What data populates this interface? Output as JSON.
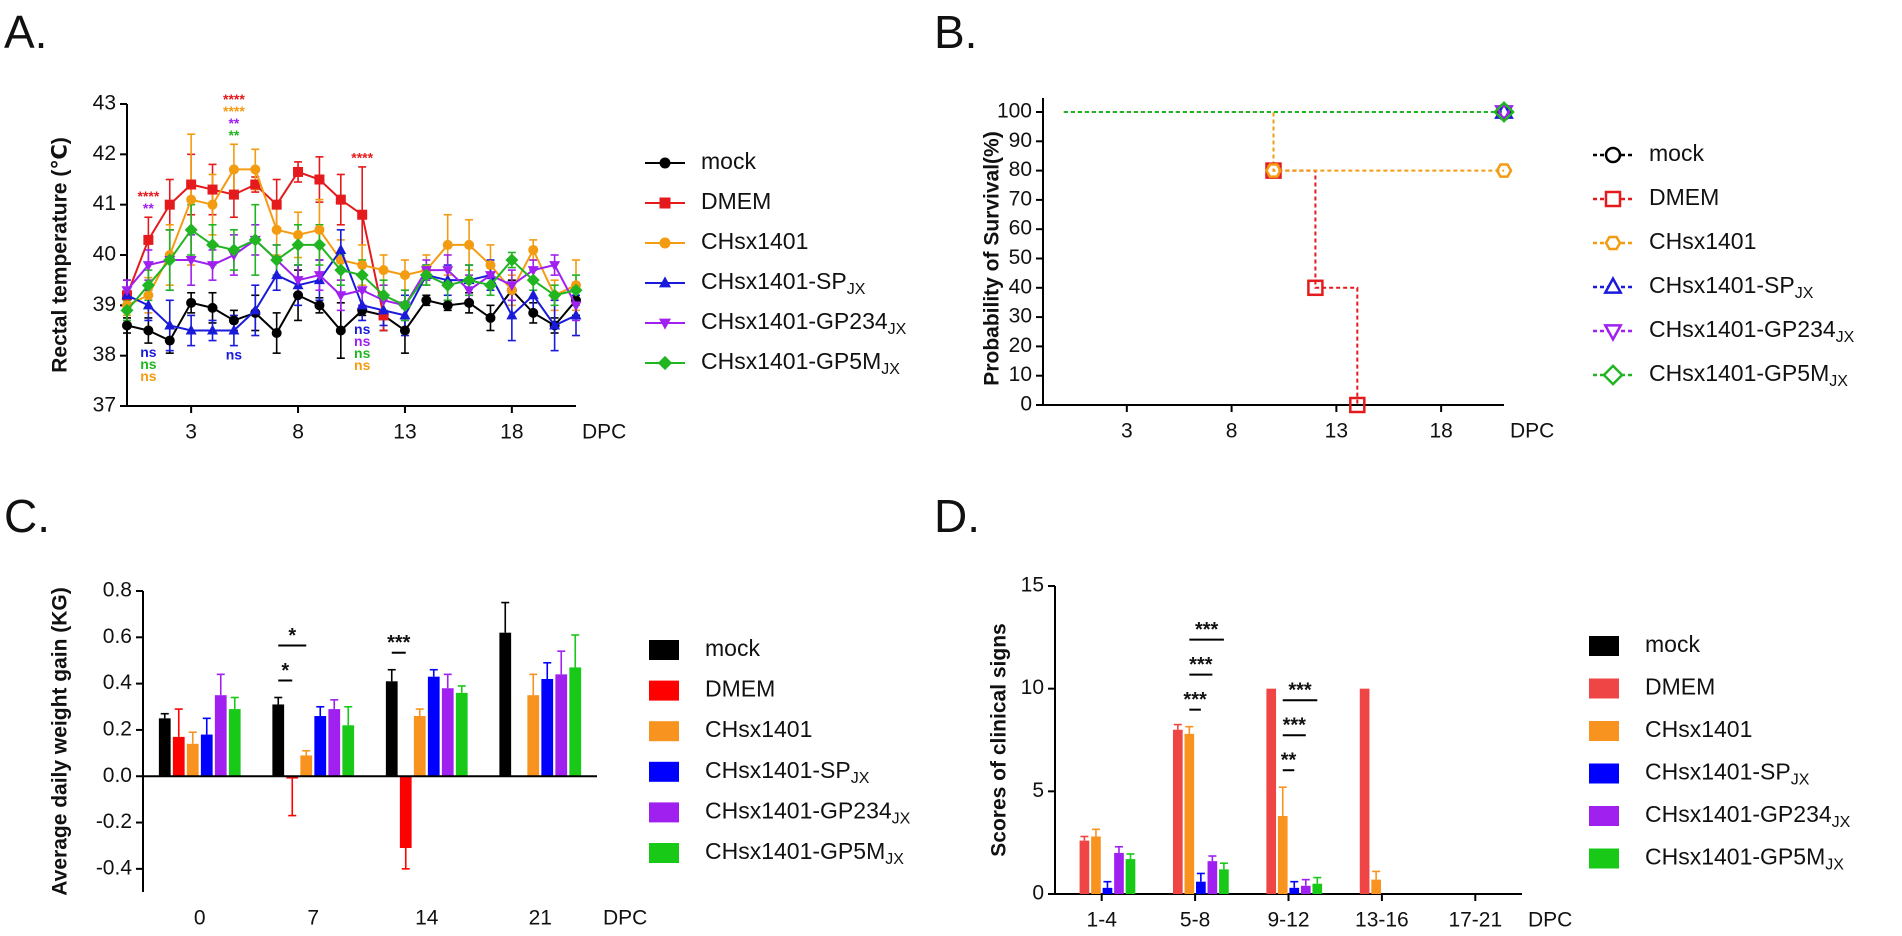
{
  "chart_data": [
    {
      "type": "line",
      "title": "A.",
      "ylabel": "Rectal temperature (℃)",
      "xlabel": "DPC",
      "x": [
        0,
        1,
        2,
        3,
        4,
        5,
        6,
        7,
        8,
        9,
        10,
        11,
        12,
        13,
        14,
        15,
        16,
        17,
        18,
        19,
        20,
        21
      ],
      "xlim": [
        0,
        21
      ],
      "xticks": [
        3,
        8,
        13,
        18
      ],
      "ylim": [
        37,
        43
      ],
      "yticks": [
        37,
        38,
        39,
        40,
        41,
        42,
        43
      ],
      "series": [
        {
          "name": "mock",
          "color": "#000000",
          "marker": "circle",
          "values": [
            38.6,
            38.5,
            38.3,
            39.05,
            38.95,
            38.7,
            38.85,
            38.45,
            39.2,
            39.0,
            38.5,
            38.9,
            38.8,
            38.5,
            39.1,
            39.0,
            39.05,
            38.75,
            39.3,
            38.85,
            38.6,
            39.1
          ],
          "errors": [
            0.15,
            0.25,
            0.25,
            0.2,
            0.3,
            0.2,
            0.35,
            0.4,
            0.5,
            0.15,
            0.55,
            0.1,
            0.3,
            0.45,
            0.1,
            0.1,
            0.2,
            0.25,
            0.2,
            0.2,
            0.15,
            0.3
          ]
        },
        {
          "name": "DMEM",
          "color": "#e41a1c",
          "marker": "square",
          "values": [
            39.2,
            40.3,
            41.0,
            41.4,
            41.3,
            41.2,
            41.4,
            41.0,
            41.65,
            41.5,
            41.1,
            40.8,
            38.8,
            null,
            null,
            null,
            null,
            null,
            null,
            null,
            null,
            null
          ],
          "errors": [
            0.3,
            0.45,
            0.5,
            0.6,
            0.5,
            0.45,
            0.15,
            0.5,
            0.2,
            0.45,
            0.5,
            0.95,
            0.3,
            null,
            null,
            null,
            null,
            null,
            null,
            null,
            null,
            null
          ]
        },
        {
          "name": "CHsx1401",
          "color": "#f39c12",
          "marker": "circle",
          "values": [
            39.0,
            39.2,
            40.0,
            41.1,
            41.0,
            41.7,
            41.7,
            40.5,
            40.4,
            40.5,
            39.9,
            39.8,
            39.7,
            39.6,
            39.7,
            40.2,
            40.2,
            39.8,
            39.3,
            40.1,
            39.2,
            39.4
          ],
          "errors": [
            0.2,
            0.35,
            0.6,
            1.3,
            0.6,
            0.5,
            0.4,
            0.5,
            0.45,
            0.6,
            0.4,
            0.4,
            0.3,
            0.3,
            0.3,
            0.6,
            0.5,
            0.4,
            0.3,
            0.2,
            0.3,
            0.5
          ]
        },
        {
          "name": "CHsx1401-SP",
          "subscript": "JX",
          "color": "#1a1adb",
          "marker": "triangle",
          "values": [
            39.2,
            39.0,
            38.6,
            38.5,
            38.5,
            38.5,
            38.9,
            39.6,
            39.4,
            39.5,
            40.1,
            39.0,
            38.9,
            38.8,
            39.6,
            39.5,
            39.5,
            39.6,
            38.8,
            39.2,
            38.6,
            38.8
          ],
          "errors": [
            0.3,
            0.3,
            0.5,
            0.3,
            0.2,
            0.3,
            0.5,
            0.3,
            0.4,
            0.4,
            0.4,
            0.3,
            0.3,
            0.4,
            0.2,
            0.3,
            0.3,
            0.3,
            0.5,
            0.3,
            0.5,
            0.4
          ]
        },
        {
          "name": "CHsx1401-GP234",
          "subscript": "JX",
          "color": "#a020f0",
          "marker": "triangle-down",
          "values": [
            39.3,
            39.8,
            39.9,
            39.9,
            39.8,
            40.0,
            40.3,
            39.9,
            39.5,
            39.6,
            39.2,
            39.3,
            39.1,
            39.0,
            39.7,
            39.7,
            39.3,
            39.6,
            39.4,
            39.7,
            39.8,
            39.0
          ],
          "errors": [
            0.2,
            0.3,
            0.6,
            0.5,
            0.3,
            0.4,
            0.3,
            0.3,
            0.3,
            0.3,
            0.3,
            0.3,
            0.3,
            0.3,
            0.2,
            0.3,
            0.3,
            0.2,
            0.3,
            0.2,
            0.2,
            0.3
          ]
        },
        {
          "name": "CHsx1401-GP5M",
          "subscript": "JX",
          "color": "#22b522",
          "marker": "diamond",
          "values": [
            38.9,
            39.4,
            39.9,
            40.5,
            40.2,
            40.1,
            40.3,
            39.9,
            40.2,
            40.2,
            39.7,
            39.6,
            39.2,
            39.0,
            39.6,
            39.4,
            39.5,
            39.4,
            39.9,
            39.5,
            39.2,
            39.3
          ],
          "errors": [
            0.2,
            0.3,
            0.6,
            0.5,
            0.4,
            0.4,
            0.7,
            0.3,
            0.4,
            0.4,
            0.3,
            0.3,
            0.3,
            0.3,
            0.2,
            0.3,
            0.3,
            0.2,
            0.15,
            0.2,
            0.2,
            0.3
          ]
        }
      ],
      "annotations": [
        {
          "x": 1,
          "position": "above",
          "labels": [
            {
              "text": "****",
              "color": "#e41a1c"
            },
            {
              "text": "**",
              "color": "#a020f0"
            }
          ]
        },
        {
          "x": 5,
          "position": "above",
          "labels": [
            {
              "text": "****",
              "color": "#e41a1c"
            },
            {
              "text": "****",
              "color": "#f39c12"
            },
            {
              "text": "**",
              "color": "#a020f0"
            },
            {
              "text": "**",
              "color": "#22b522"
            }
          ]
        },
        {
          "x": 11,
          "position": "above",
          "labels": [
            {
              "text": "****",
              "color": "#e41a1c"
            }
          ]
        },
        {
          "x": 1,
          "position": "below",
          "labels": [
            {
              "text": "ns",
              "color": "#1a1adb"
            },
            {
              "text": "ns",
              "color": "#22b522"
            },
            {
              "text": "ns",
              "color": "#f39c12"
            }
          ]
        },
        {
          "x": 5,
          "position": "below",
          "labels": [
            {
              "text": "ns",
              "color": "#1a1adb"
            }
          ]
        },
        {
          "x": 11,
          "position": "below",
          "labels": [
            {
              "text": "ns",
              "color": "#1a1adb"
            },
            {
              "text": "ns",
              "color": "#a020f0"
            },
            {
              "text": "ns",
              "color": "#22b522"
            },
            {
              "text": "ns",
              "color": "#f39c12"
            }
          ]
        }
      ]
    },
    {
      "type": "step",
      "title": "B.",
      "ylabel": "Probability of Survival(%)",
      "xlabel": "DPC",
      "line_style": "dashed",
      "xlim": [
        -1,
        21
      ],
      "xticks": [
        3,
        8,
        13,
        18
      ],
      "ylim": [
        0,
        100
      ],
      "yticks": [
        0,
        10,
        20,
        30,
        40,
        50,
        60,
        70,
        80,
        90,
        100
      ],
      "series": [
        {
          "name": "mock",
          "color": "#000000",
          "marker": "circle",
          "x": [
            0,
            21
          ],
          "values": [
            100,
            100
          ]
        },
        {
          "name": "DMEM",
          "color": "#e41a1c",
          "marker": "square",
          "x": [
            0,
            10,
            12,
            14
          ],
          "values": [
            100,
            80,
            40,
            0
          ]
        },
        {
          "name": "CHsx1401",
          "color": "#f39c12",
          "marker": "hexagon",
          "x": [
            0,
            10,
            21
          ],
          "values": [
            100,
            80,
            80
          ]
        },
        {
          "name": "CHsx1401-SP",
          "subscript": "JX",
          "color": "#1a1adb",
          "marker": "triangle",
          "x": [
            0,
            21
          ],
          "values": [
            100,
            100
          ]
        },
        {
          "name": "CHsx1401-GP234",
          "subscript": "JX",
          "color": "#a020f0",
          "marker": "triangle-down",
          "x": [
            0,
            21
          ],
          "values": [
            100,
            100
          ]
        },
        {
          "name": "CHsx1401-GP5M",
          "subscript": "JX",
          "color": "#22b522",
          "marker": "diamond",
          "x": [
            0,
            21
          ],
          "values": [
            100,
            100
          ]
        }
      ]
    },
    {
      "type": "bar",
      "title": "C.",
      "ylabel": "Average daily weight gain (KG)",
      "xlabel": "DPC",
      "categories": [
        "0",
        "7",
        "14",
        "21"
      ],
      "ylim": [
        -0.5,
        0.8
      ],
      "yticks": [
        -0.4,
        -0.2,
        {
          "value": 0,
          "label": "0.0"
        },
        0.2,
        0.4,
        0.6,
        0.8
      ],
      "series": [
        {
          "name": "mock",
          "color": "#000000",
          "values": [
            0.25,
            0.31,
            0.41,
            0.62
          ],
          "errors": [
            0.02,
            0.03,
            0.05,
            0.13
          ]
        },
        {
          "name": "DMEM",
          "color": "#ff0000",
          "values": [
            0.17,
            -0.01,
            -0.31,
            null
          ],
          "errors": [
            0.12,
            0.16,
            0.09,
            null
          ]
        },
        {
          "name": "CHsx1401",
          "color": "#f7931e",
          "values": [
            0.14,
            0.09,
            0.26,
            0.35
          ],
          "errors": [
            0.05,
            0.02,
            0.03,
            0.09
          ]
        },
        {
          "name": "CHsx1401-SP",
          "subscript": "JX",
          "color": "#0000ff",
          "values": [
            0.18,
            0.26,
            0.43,
            0.42
          ],
          "errors": [
            0.07,
            0.04,
            0.03,
            0.07
          ]
        },
        {
          "name": "CHsx1401-GP234",
          "subscript": "JX",
          "color": "#a020f0",
          "values": [
            0.35,
            0.29,
            0.38,
            0.44
          ],
          "errors": [
            0.09,
            0.04,
            0.06,
            0.1
          ]
        },
        {
          "name": "CHsx1401-GP5M",
          "subscript": "JX",
          "color": "#18c918",
          "values": [
            0.29,
            0.22,
            0.36,
            0.47
          ],
          "errors": [
            0.05,
            0.08,
            0.03,
            0.14
          ]
        }
      ],
      "annotations": [
        {
          "category": 1,
          "from": 0,
          "to": 1,
          "text": "*"
        },
        {
          "category": 1,
          "from": 0,
          "to": 2,
          "text": "*"
        },
        {
          "category": 2,
          "from": 0,
          "to": 1,
          "text": "***"
        }
      ]
    },
    {
      "type": "bar",
      "title": "D.",
      "ylabel": "Scores of clinical signs",
      "xlabel": "DPC",
      "axis_at_bottom": true,
      "categories": [
        "1-4",
        "5-8",
        "9-12",
        "13-16",
        "17-21"
      ],
      "ylim": [
        0,
        15
      ],
      "yticks": [
        0,
        5,
        10,
        15
      ],
      "series": [
        {
          "name": "mock",
          "color": "#000000",
          "values": [
            0,
            0,
            0,
            0,
            0
          ],
          "errors": [
            0,
            0,
            0,
            0,
            0
          ]
        },
        {
          "name": "DMEM",
          "color": "#f04545",
          "values": [
            2.6,
            8.0,
            10,
            10,
            0
          ],
          "errors": [
            0.2,
            0.25,
            0,
            0,
            0
          ]
        },
        {
          "name": "CHsx1401",
          "color": "#f7931e",
          "values": [
            2.8,
            7.8,
            3.8,
            0.7,
            0
          ],
          "errors": [
            0.35,
            0.35,
            1.4,
            0.4,
            0
          ]
        },
        {
          "name": "CHsx1401-SP",
          "subscript": "JX",
          "color": "#0000ff",
          "values": [
            0.3,
            0.6,
            0.3,
            0,
            0
          ],
          "errors": [
            0.3,
            0.4,
            0.3,
            0,
            0
          ]
        },
        {
          "name": "CHsx1401-GP234",
          "subscript": "JX",
          "color": "#a020f0",
          "values": [
            2.0,
            1.6,
            0.4,
            0,
            0
          ],
          "errors": [
            0.3,
            0.25,
            0.3,
            0,
            0
          ]
        },
        {
          "name": "CHsx1401-GP5M",
          "subscript": "JX",
          "color": "#18c918",
          "values": [
            1.7,
            1.2,
            0.5,
            0,
            0
          ],
          "errors": [
            0.25,
            0.3,
            0.3,
            0,
            0
          ]
        }
      ],
      "annotations": [
        {
          "category": 1,
          "from": 2,
          "to": 3,
          "text": "***"
        },
        {
          "category": 1,
          "from": 2,
          "to": 4,
          "text": "***"
        },
        {
          "category": 1,
          "from": 2,
          "to": 5,
          "text": "***"
        },
        {
          "category": 2,
          "from": 2,
          "to": 3,
          "text": "**"
        },
        {
          "category": 2,
          "from": 2,
          "to": 4,
          "text": "***"
        },
        {
          "category": 2,
          "from": 2,
          "to": 5,
          "text": "***"
        }
      ]
    }
  ]
}
